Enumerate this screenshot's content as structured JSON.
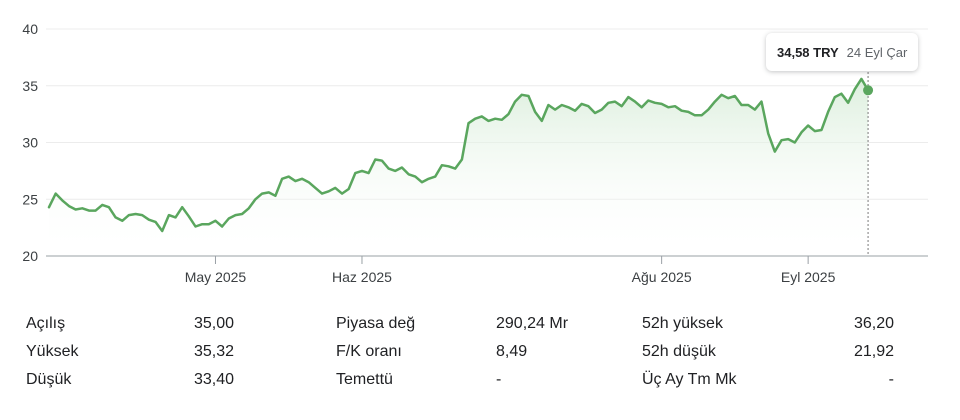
{
  "tooltip": {
    "price": "34,58 TRY",
    "date": "24 Eyl Çar"
  },
  "colors": {
    "line": "#5aa65e",
    "fill_top": "#d6ecd7",
    "grid": "#ececec",
    "axis": "#9aa0a6",
    "cursor": "#7a7a7a"
  },
  "stats": {
    "open_label": "Açılış",
    "open_value": "35,00",
    "high_label": "Yüksek",
    "high_value": "35,32",
    "low_label": "Düşük",
    "low_value": "33,40",
    "mcap_label": "Piyasa değ",
    "mcap_value": "290,24 Mr",
    "pe_label": "F/K oranı",
    "pe_value": "8,49",
    "div_label": "Temettü",
    "div_value": "-",
    "high52_label": "52h yüksek",
    "high52_value": "36,20",
    "low52_label": "52h düşük",
    "low52_value": "21,92",
    "cdp_label": "Üç Ay Tm Mk",
    "cdp_value": "-"
  },
  "chart_data": {
    "type": "area",
    "ylim": [
      20,
      40
    ],
    "y_ticks": [
      20,
      25,
      30,
      35,
      40
    ],
    "x_ticks": [
      {
        "label": "May 2025",
        "index": 25
      },
      {
        "label": "Haz 2025",
        "index": 47
      },
      {
        "label": "Ağu 2025",
        "index": 92
      },
      {
        "label": "Eyl 2025",
        "index": 114
      }
    ],
    "n_points": 133,
    "grid": true,
    "values": [
      24.3,
      25.5,
      24.9,
      24.4,
      24.1,
      24.2,
      24.0,
      24.0,
      24.5,
      24.3,
      23.4,
      23.1,
      23.6,
      23.7,
      23.6,
      23.2,
      23.0,
      22.2,
      23.6,
      23.4,
      24.3,
      23.5,
      22.6,
      22.8,
      22.8,
      23.1,
      22.6,
      23.3,
      23.6,
      23.7,
      24.2,
      25.0,
      25.5,
      25.6,
      25.3,
      26.8,
      27.0,
      26.6,
      26.8,
      26.5,
      26.0,
      25.5,
      25.7,
      26.0,
      25.5,
      25.9,
      27.3,
      27.5,
      27.3,
      28.5,
      28.4,
      27.7,
      27.5,
      27.8,
      27.2,
      27.0,
      26.5,
      26.8,
      27.0,
      28.0,
      27.9,
      27.7,
      28.5,
      31.7,
      32.1,
      32.3,
      31.9,
      32.1,
      32.0,
      32.5,
      33.6,
      34.2,
      34.1,
      32.7,
      31.9,
      33.3,
      32.9,
      33.3,
      33.1,
      32.8,
      33.4,
      33.2,
      32.6,
      32.9,
      33.5,
      33.6,
      33.2,
      34.0,
      33.6,
      33.1,
      33.7,
      33.5,
      33.4,
      33.1,
      33.2,
      32.8,
      32.7,
      32.4,
      32.4,
      32.9,
      33.6,
      34.2,
      33.9,
      34.1,
      33.3,
      33.3,
      32.9,
      33.6,
      30.8,
      29.2,
      30.2,
      30.3,
      30.0,
      30.9,
      31.5,
      31.0,
      31.1,
      32.7,
      34.0,
      34.3,
      33.5,
      34.7,
      35.6,
      34.6
    ]
  }
}
